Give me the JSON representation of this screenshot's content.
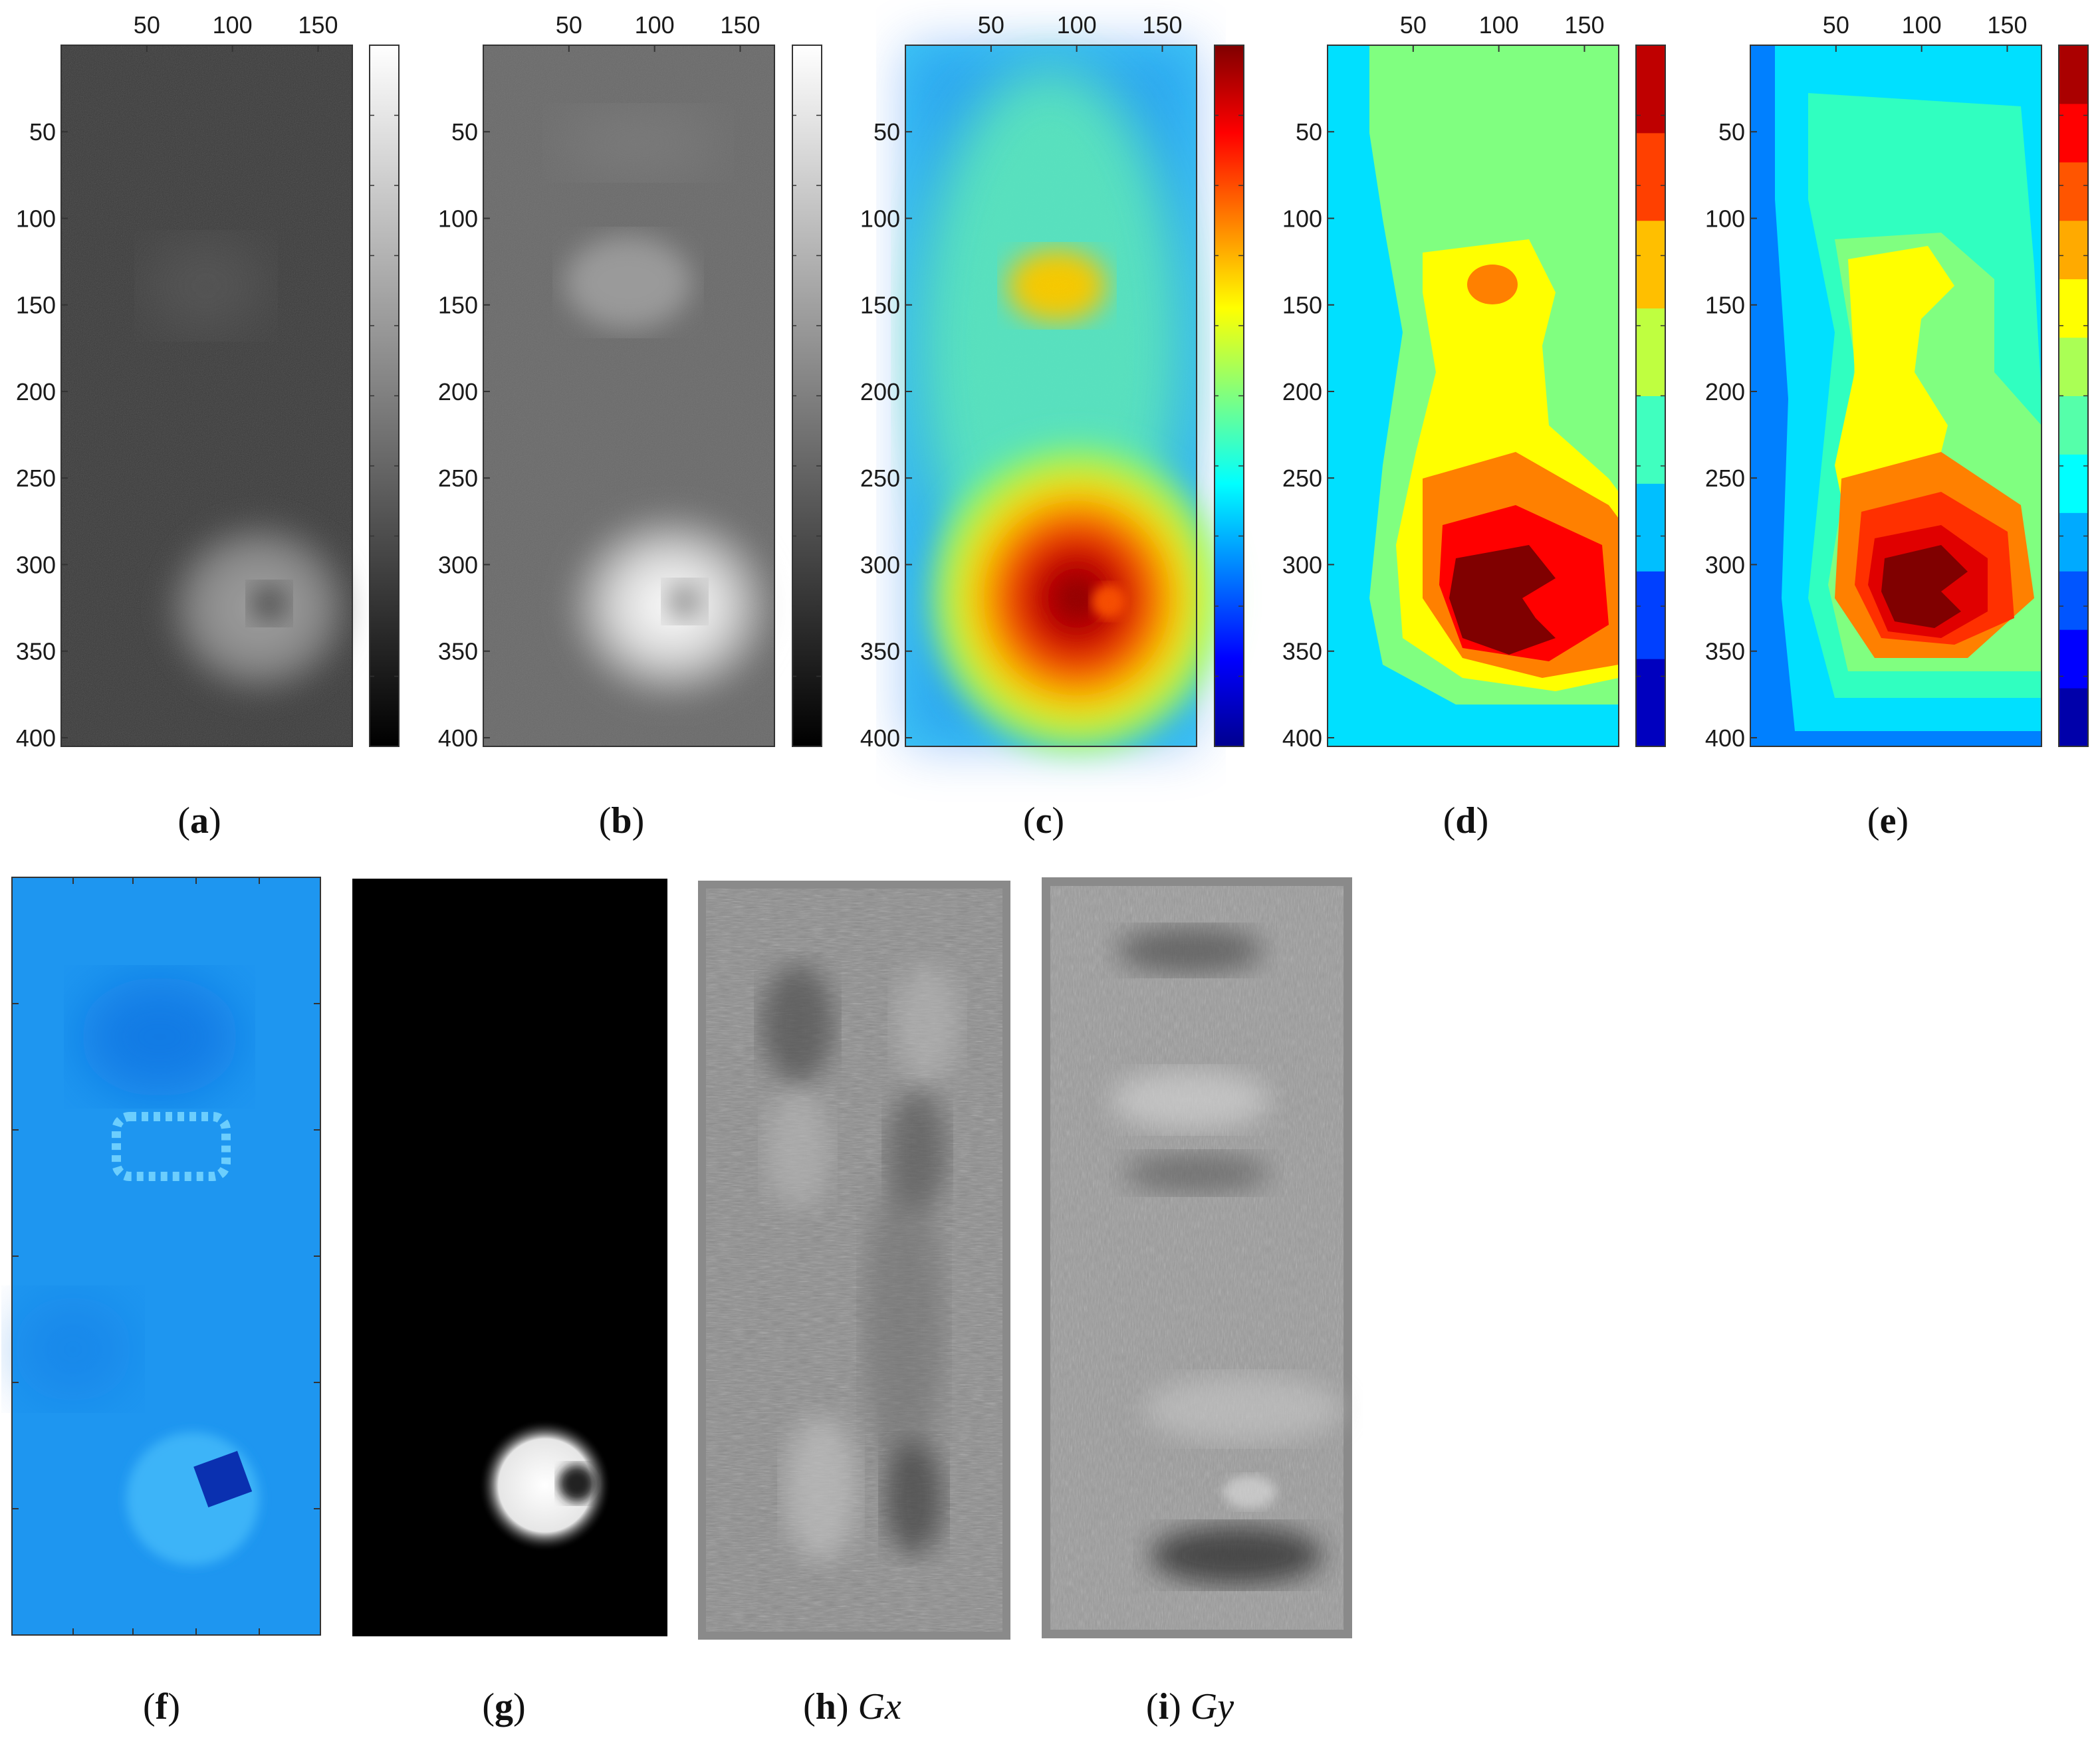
{
  "figure": {
    "top_row": {
      "x_ticks": [
        "50",
        "100",
        "150"
      ],
      "y_ticks": [
        "50",
        "100",
        "150",
        "200",
        "250",
        "300",
        "350",
        "400"
      ],
      "panels": [
        {
          "id": "a",
          "caption_label": "a",
          "caption_suffix": "",
          "colormap": "gray",
          "colorbar_levels": 0
        },
        {
          "id": "b",
          "caption_label": "b",
          "caption_suffix": "",
          "colormap": "gray",
          "colorbar_levels": 0
        },
        {
          "id": "c",
          "caption_label": "c",
          "caption_suffix": "",
          "colormap": "jet",
          "colorbar_levels": 0
        },
        {
          "id": "d",
          "caption_label": "d",
          "caption_suffix": "",
          "colormap": "jet",
          "colorbar_levels": 8
        },
        {
          "id": "e",
          "caption_label": "e",
          "caption_suffix": "",
          "colormap": "jet",
          "colorbar_levels": 12
        }
      ]
    },
    "bottom_row": {
      "panels": [
        {
          "id": "f",
          "caption_label": "f",
          "caption_suffix": ""
        },
        {
          "id": "g",
          "caption_label": "g",
          "caption_suffix": ""
        },
        {
          "id": "h",
          "caption_label": "h",
          "caption_suffix": "Gx"
        },
        {
          "id": "i",
          "caption_label": "i",
          "caption_suffix": "Gy"
        }
      ]
    },
    "colors": {
      "jet_dark_blue": "#00008f",
      "jet_blue": "#0050ff",
      "jet_cyan": "#00ffff",
      "jet_green": "#80ff80",
      "jet_yellow": "#ffff00",
      "jet_orange": "#ff8000",
      "jet_red": "#ff0000",
      "jet_dark_red": "#800000",
      "photo_blue": "#1e96f0"
    }
  }
}
